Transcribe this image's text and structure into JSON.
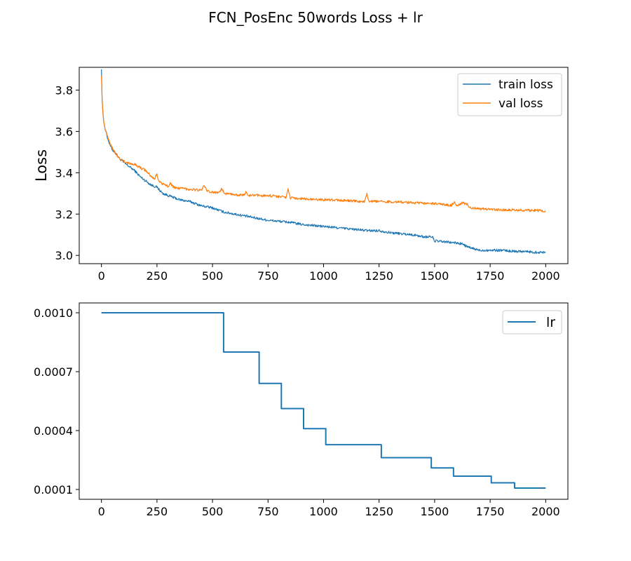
{
  "figure": {
    "title": "FCN_PosEnc 50words Loss + lr"
  },
  "chart_data": [
    {
      "type": "line",
      "title": "",
      "xlabel": "",
      "ylabel": "Loss",
      "xlim": [
        -100,
        2100
      ],
      "ylim": [
        2.96,
        3.91
      ],
      "xticks": [
        0,
        250,
        500,
        750,
        1000,
        1250,
        1500,
        1750,
        2000
      ],
      "yticks": [
        3.0,
        3.2,
        3.4,
        3.6,
        3.8
      ],
      "ytick_labels": [
        "3.0",
        "3.2",
        "3.4",
        "3.6",
        "3.8"
      ],
      "grid": false,
      "legend": "upper right",
      "series": [
        {
          "name": "train loss",
          "color": "#1f77b4",
          "x": [
            0,
            3,
            6,
            10,
            15,
            20,
            30,
            40,
            50,
            60,
            80,
            100,
            125,
            150,
            175,
            200,
            225,
            250,
            275,
            300,
            350,
            400,
            450,
            500,
            550,
            600,
            650,
            700,
            750,
            800,
            850,
            900,
            950,
            1000,
            1100,
            1200,
            1250,
            1300,
            1400,
            1450,
            1490,
            1500,
            1550,
            1600,
            1625,
            1650,
            1700,
            1750,
            1800,
            1850,
            1900,
            1950,
            2000
          ],
          "y": [
            3.9,
            3.76,
            3.7,
            3.65,
            3.62,
            3.6,
            3.56,
            3.53,
            3.51,
            3.5,
            3.47,
            3.45,
            3.43,
            3.41,
            3.38,
            3.36,
            3.34,
            3.33,
            3.3,
            3.29,
            3.27,
            3.26,
            3.24,
            3.23,
            3.21,
            3.2,
            3.19,
            3.18,
            3.17,
            3.165,
            3.16,
            3.15,
            3.145,
            3.14,
            3.13,
            3.12,
            3.12,
            3.11,
            3.1,
            3.09,
            3.09,
            3.07,
            3.065,
            3.06,
            3.055,
            3.04,
            3.025,
            3.025,
            3.025,
            3.02,
            3.02,
            3.015,
            3.015
          ]
        },
        {
          "name": "val loss",
          "color": "#ff7f0e",
          "x": [
            0,
            3,
            6,
            10,
            15,
            20,
            30,
            40,
            50,
            60,
            80,
            100,
            125,
            150,
            175,
            200,
            225,
            240,
            248,
            260,
            275,
            300,
            310,
            325,
            350,
            400,
            450,
            462,
            475,
            500,
            525,
            540,
            555,
            575,
            600,
            640,
            650,
            660,
            700,
            750,
            800,
            830,
            840,
            850,
            900,
            950,
            1000,
            1050,
            1100,
            1150,
            1185,
            1195,
            1205,
            1250,
            1300,
            1350,
            1400,
            1450,
            1500,
            1550,
            1575,
            1590,
            1600,
            1625,
            1650,
            1660,
            1700,
            1750,
            1800,
            1850,
            1900,
            1950,
            2000
          ],
          "y": [
            3.87,
            3.76,
            3.7,
            3.65,
            3.62,
            3.6,
            3.57,
            3.54,
            3.52,
            3.5,
            3.47,
            3.455,
            3.445,
            3.44,
            3.425,
            3.41,
            3.38,
            3.37,
            3.395,
            3.36,
            3.345,
            3.335,
            3.35,
            3.33,
            3.325,
            3.32,
            3.315,
            3.34,
            3.31,
            3.305,
            3.305,
            3.32,
            3.3,
            3.298,
            3.295,
            3.29,
            3.305,
            3.29,
            3.29,
            3.29,
            3.285,
            3.28,
            3.32,
            3.278,
            3.275,
            3.27,
            3.27,
            3.268,
            3.265,
            3.262,
            3.26,
            3.295,
            3.262,
            3.26,
            3.26,
            3.258,
            3.255,
            3.252,
            3.25,
            3.245,
            3.242,
            3.26,
            3.24,
            3.255,
            3.245,
            3.23,
            3.225,
            3.222,
            3.22,
            3.22,
            3.218,
            3.218,
            3.215
          ]
        }
      ]
    },
    {
      "type": "line",
      "title": "",
      "xlabel": "",
      "ylabel": "",
      "xlim": [
        -100,
        2100
      ],
      "ylim": [
        5e-05,
        0.00105
      ],
      "xticks": [
        0,
        250,
        500,
        750,
        1000,
        1250,
        1500,
        1750,
        2000
      ],
      "yticks": [
        0.0001,
        0.0004,
        0.0007,
        0.001
      ],
      "ytick_labels": [
        "0.0001",
        "0.0004",
        "0.0007",
        "0.0010"
      ],
      "grid": false,
      "legend": "upper right",
      "series": [
        {
          "name": "lr",
          "color": "#1f77b4",
          "step": true,
          "x": [
            0,
            550,
            710,
            810,
            910,
            1010,
            1260,
            1485,
            1585,
            1755,
            1860,
            2000
          ],
          "y": [
            0.001,
            0.0008,
            0.00064,
            0.000512,
            0.00041,
            0.000328,
            0.000262,
            0.00021,
            0.000168,
            0.000134,
            0.000107,
            0.000107
          ]
        }
      ]
    }
  ]
}
